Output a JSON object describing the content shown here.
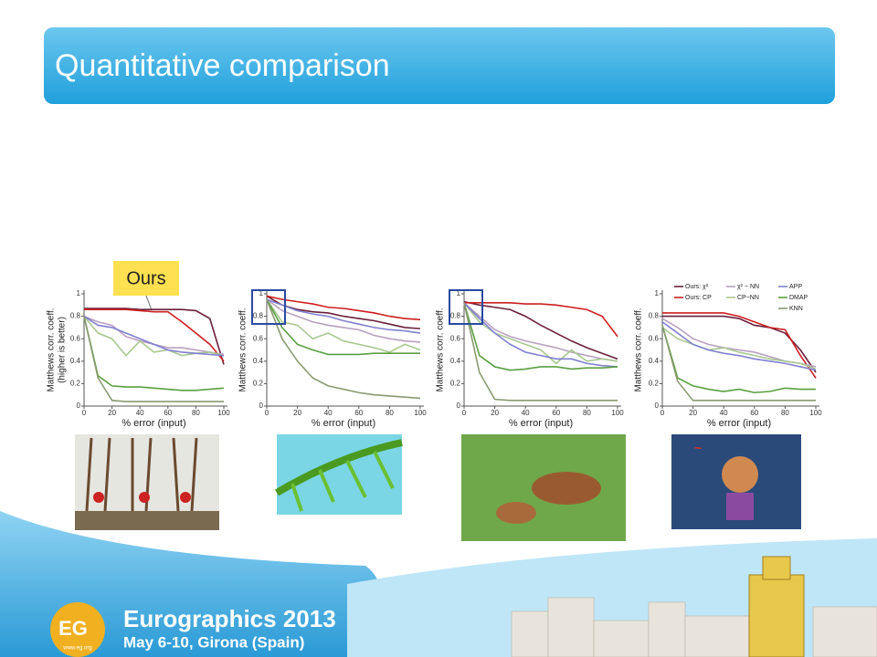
{
  "header": {
    "title": "Quantitative comparison"
  },
  "callout": "Ours",
  "footer": {
    "logo": "EG",
    "url": "www.eg.org",
    "event": "Eurographics 2013",
    "date": "May 6-10, Girona (Spain)"
  },
  "chart_data": [
    {
      "type": "line",
      "ylabel": "Matthews corr. coeff.",
      "ylabel_note": "(higher is better)",
      "xlabel": "% error (input)",
      "x": [
        0,
        10,
        20,
        30,
        40,
        50,
        60,
        70,
        80,
        90,
        100
      ],
      "xlim": [
        0,
        100
      ],
      "ylim": [
        0,
        1
      ],
      "xticks": [
        0,
        20,
        40,
        60,
        80,
        100
      ],
      "yticks": [
        0,
        0.2,
        0.4,
        0.6,
        0.8,
        1
      ],
      "series": [
        {
          "color": "#6b1f3a",
          "values": [
            0.87,
            0.87,
            0.87,
            0.87,
            0.86,
            0.86,
            0.86,
            0.86,
            0.85,
            0.78,
            0.37
          ]
        },
        {
          "color": "#cc1f1f",
          "values": [
            0.86,
            0.86,
            0.86,
            0.86,
            0.85,
            0.84,
            0.84,
            0.75,
            0.65,
            0.55,
            0.4
          ]
        },
        {
          "color": "#b8a0c0",
          "values": [
            0.8,
            0.75,
            0.72,
            0.62,
            0.58,
            0.55,
            0.52,
            0.52,
            0.5,
            0.48,
            0.46
          ]
        },
        {
          "color": "#a8c890",
          "values": [
            0.8,
            0.65,
            0.6,
            0.45,
            0.58,
            0.48,
            0.5,
            0.45,
            0.47,
            0.48,
            0.45
          ]
        },
        {
          "color": "#8080d0",
          "values": [
            0.8,
            0.72,
            0.7,
            0.65,
            0.6,
            0.55,
            0.5,
            0.48,
            0.47,
            0.46,
            0.45
          ]
        },
        {
          "color": "#5aa040",
          "values": [
            0.8,
            0.27,
            0.18,
            0.17,
            0.17,
            0.16,
            0.15,
            0.14,
            0.14,
            0.15,
            0.16
          ]
        },
        {
          "color": "#8a9a70",
          "values": [
            0.8,
            0.25,
            0.05,
            0.04,
            0.04,
            0.04,
            0.04,
            0.04,
            0.04,
            0.04,
            0.04
          ]
        }
      ]
    },
    {
      "type": "line",
      "ylabel": "Matthews corr. coeff.",
      "xlabel": "% error (input)",
      "x": [
        0,
        10,
        20,
        30,
        40,
        50,
        60,
        70,
        80,
        90,
        100
      ],
      "xlim": [
        0,
        100
      ],
      "ylim": [
        0,
        1
      ],
      "xticks": [
        0,
        20,
        40,
        60,
        80,
        100
      ],
      "yticks": [
        0,
        0.2,
        0.4,
        0.6,
        0.8,
        1
      ],
      "series": [
        {
          "color": "#6b1f3a",
          "values": [
            0.98,
            0.9,
            0.86,
            0.84,
            0.83,
            0.8,
            0.78,
            0.76,
            0.73,
            0.7,
            0.69
          ]
        },
        {
          "color": "#cc1f1f",
          "values": [
            0.98,
            0.95,
            0.93,
            0.91,
            0.88,
            0.87,
            0.85,
            0.83,
            0.8,
            0.78,
            0.77
          ]
        },
        {
          "color": "#b8a0c0",
          "values": [
            0.95,
            0.85,
            0.8,
            0.75,
            0.72,
            0.7,
            0.68,
            0.63,
            0.6,
            0.58,
            0.57
          ]
        },
        {
          "color": "#a8c890",
          "values": [
            0.95,
            0.75,
            0.72,
            0.6,
            0.65,
            0.58,
            0.55,
            0.52,
            0.48,
            0.55,
            0.5
          ]
        },
        {
          "color": "#8080d0",
          "values": [
            0.95,
            0.9,
            0.85,
            0.82,
            0.8,
            0.76,
            0.73,
            0.7,
            0.68,
            0.67,
            0.65
          ]
        },
        {
          "color": "#5aa040",
          "values": [
            0.95,
            0.7,
            0.55,
            0.5,
            0.46,
            0.46,
            0.46,
            0.47,
            0.47,
            0.47,
            0.47
          ]
        },
        {
          "color": "#8a9a70",
          "values": [
            0.95,
            0.6,
            0.4,
            0.25,
            0.18,
            0.15,
            0.12,
            0.1,
            0.09,
            0.08,
            0.07
          ]
        }
      ]
    },
    {
      "type": "line",
      "ylabel": "Matthews corr. coeff.",
      "xlabel": "% error (input)",
      "x": [
        0,
        10,
        20,
        30,
        40,
        50,
        60,
        70,
        80,
        90,
        100
      ],
      "xlim": [
        0,
        100
      ],
      "ylim": [
        0,
        1
      ],
      "xticks": [
        0,
        20,
        40,
        60,
        80,
        100
      ],
      "yticks": [
        0,
        0.2,
        0.4,
        0.6,
        0.8,
        1
      ],
      "series": [
        {
          "color": "#6b1f3a",
          "values": [
            0.93,
            0.9,
            0.88,
            0.86,
            0.8,
            0.72,
            0.65,
            0.58,
            0.52,
            0.47,
            0.42
          ]
        },
        {
          "color": "#cc1f1f",
          "values": [
            0.92,
            0.92,
            0.92,
            0.92,
            0.91,
            0.91,
            0.9,
            0.88,
            0.86,
            0.8,
            0.62
          ]
        },
        {
          "color": "#b8a0c0",
          "values": [
            0.92,
            0.8,
            0.68,
            0.62,
            0.58,
            0.55,
            0.52,
            0.48,
            0.45,
            0.42,
            0.4
          ]
        },
        {
          "color": "#a8c890",
          "values": [
            0.92,
            0.75,
            0.65,
            0.6,
            0.55,
            0.5,
            0.38,
            0.5,
            0.4,
            0.42,
            0.4
          ]
        },
        {
          "color": "#8080d0",
          "values": [
            0.92,
            0.78,
            0.65,
            0.55,
            0.48,
            0.45,
            0.42,
            0.42,
            0.38,
            0.36,
            0.35
          ]
        },
        {
          "color": "#5aa040",
          "values": [
            0.92,
            0.45,
            0.35,
            0.32,
            0.33,
            0.35,
            0.35,
            0.33,
            0.34,
            0.34,
            0.35
          ]
        },
        {
          "color": "#8a9a70",
          "values": [
            0.92,
            0.3,
            0.06,
            0.05,
            0.05,
            0.05,
            0.05,
            0.05,
            0.05,
            0.05,
            0.05
          ]
        }
      ]
    },
    {
      "type": "line",
      "ylabel": "Matthews corr. coeff.",
      "xlabel": "% error (input)",
      "legend": "top",
      "x": [
        0,
        10,
        20,
        30,
        40,
        50,
        60,
        70,
        80,
        90,
        100
      ],
      "xlim": [
        0,
        100
      ],
      "ylim": [
        0,
        1
      ],
      "xticks": [
        0,
        20,
        40,
        60,
        80,
        100
      ],
      "yticks": [
        0,
        0.2,
        0.4,
        0.6,
        0.8,
        1
      ],
      "series": [
        {
          "name": "Ours: χ²",
          "color": "#6b1f3a",
          "values": [
            0.8,
            0.8,
            0.8,
            0.8,
            0.8,
            0.78,
            0.72,
            0.7,
            0.65,
            0.5,
            0.3
          ]
        },
        {
          "name": "Ours: CP",
          "color": "#cc1f1f",
          "values": [
            0.83,
            0.83,
            0.83,
            0.83,
            0.83,
            0.8,
            0.75,
            0.7,
            0.68,
            0.45,
            0.25
          ]
        },
        {
          "name": "χ² − NN",
          "color": "#b8a0c0",
          "values": [
            0.78,
            0.7,
            0.6,
            0.55,
            0.52,
            0.5,
            0.48,
            0.44,
            0.4,
            0.38,
            0.35
          ]
        },
        {
          "name": "CP−NN",
          "color": "#a8c890",
          "values": [
            0.7,
            0.6,
            0.55,
            0.5,
            0.52,
            0.48,
            0.45,
            0.42,
            0.4,
            0.38,
            0.33
          ]
        },
        {
          "name": "APP",
          "color": "#8080d0",
          "values": [
            0.75,
            0.65,
            0.55,
            0.5,
            0.47,
            0.45,
            0.42,
            0.4,
            0.38,
            0.35,
            0.32
          ]
        },
        {
          "name": "DMAP",
          "color": "#5aa040",
          "values": [
            0.72,
            0.25,
            0.18,
            0.15,
            0.13,
            0.15,
            0.12,
            0.13,
            0.16,
            0.15,
            0.15
          ]
        },
        {
          "name": "KNN",
          "color": "#8a9a70",
          "values": [
            0.72,
            0.22,
            0.05,
            0.05,
            0.05,
            0.05,
            0.05,
            0.05,
            0.05,
            0.05,
            0.05
          ]
        }
      ]
    }
  ]
}
